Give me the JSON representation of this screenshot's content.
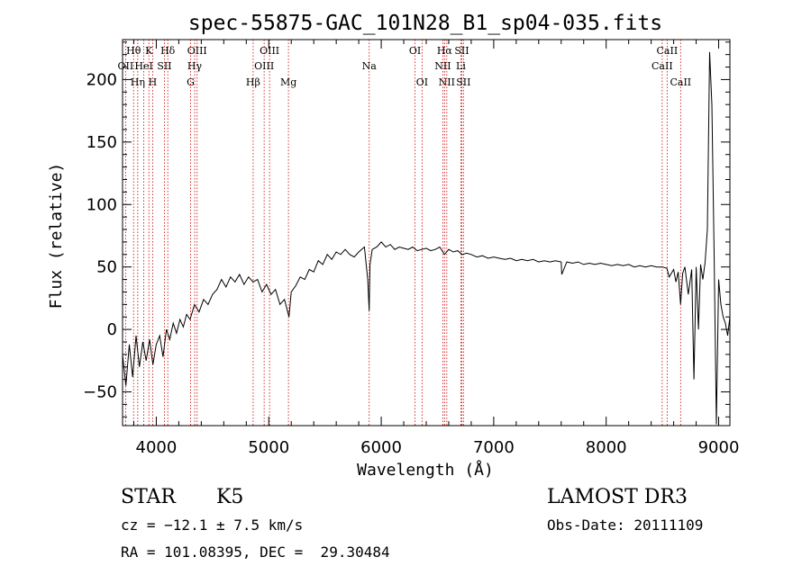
{
  "chart_data": {
    "type": "line",
    "title": "spec-55875-GAC_101N28_B1_sp04-035.fits",
    "xlabel": "Wavelength (Å)",
    "ylabel": "Flux (relative)",
    "xlim": [
      3700,
      9100
    ],
    "ylim": [
      -77,
      232
    ],
    "xticks": [
      4000,
      5000,
      6000,
      7000,
      8000,
      9000
    ],
    "yticks": [
      -50,
      0,
      50,
      100,
      150,
      200
    ],
    "line_color": "#000000",
    "marker_color": "#cc0000",
    "series": [
      {
        "name": "flux",
        "x": [
          3700,
          3730,
          3760,
          3790,
          3820,
          3850,
          3880,
          3910,
          3940,
          3970,
          4000,
          4030,
          4060,
          4090,
          4120,
          4150,
          4180,
          4210,
          4240,
          4270,
          4300,
          4340,
          4380,
          4420,
          4460,
          4500,
          4540,
          4580,
          4620,
          4660,
          4700,
          4740,
          4780,
          4820,
          4860,
          4900,
          4940,
          4980,
          5020,
          5060,
          5100,
          5140,
          5180,
          5200,
          5240,
          5280,
          5320,
          5360,
          5400,
          5440,
          5480,
          5520,
          5560,
          5600,
          5640,
          5680,
          5720,
          5760,
          5800,
          5850,
          5880,
          5893,
          5900,
          5920,
          5960,
          6000,
          6040,
          6080,
          6120,
          6160,
          6200,
          6240,
          6280,
          6320,
          6360,
          6400,
          6440,
          6480,
          6520,
          6563,
          6600,
          6640,
          6680,
          6720,
          6760,
          6800,
          6850,
          6900,
          6950,
          7000,
          7050,
          7100,
          7150,
          7200,
          7250,
          7300,
          7350,
          7400,
          7450,
          7500,
          7550,
          7600,
          7605,
          7650,
          7700,
          7750,
          7800,
          7850,
          7900,
          7950,
          8000,
          8050,
          8100,
          8150,
          8200,
          8250,
          8300,
          8350,
          8400,
          8450,
          8500,
          8540,
          8560,
          8600,
          8620,
          8640,
          8662,
          8680,
          8700,
          8730,
          8760,
          8780,
          8800,
          8820,
          8840,
          8860,
          8880,
          8900,
          8920,
          8940,
          8960,
          8980,
          9000,
          9020,
          9040,
          9060,
          9080,
          9100
        ],
        "y": [
          -20,
          -45,
          -12,
          -38,
          -5,
          -30,
          -10,
          -25,
          -8,
          -28,
          -12,
          -5,
          -22,
          0,
          -8,
          5,
          -3,
          8,
          2,
          12,
          8,
          20,
          14,
          24,
          20,
          28,
          32,
          40,
          34,
          42,
          38,
          44,
          36,
          42,
          38,
          40,
          30,
          36,
          28,
          32,
          20,
          24,
          10,
          30,
          35,
          42,
          40,
          48,
          46,
          55,
          52,
          60,
          56,
          62,
          60,
          64,
          60,
          58,
          62,
          66,
          40,
          15,
          52,
          64,
          66,
          70,
          66,
          68,
          64,
          66,
          65,
          64,
          66,
          63,
          64,
          65,
          63,
          64,
          66,
          60,
          64,
          62,
          63,
          60,
          61,
          60,
          58,
          59,
          57,
          58,
          57,
          56,
          57,
          55,
          56,
          55,
          56,
          54,
          55,
          54,
          55,
          54,
          44,
          54,
          53,
          54,
          52,
          53,
          52,
          53,
          52,
          51,
          52,
          51,
          52,
          50,
          51,
          50,
          51,
          50,
          50,
          49,
          42,
          48,
          38,
          46,
          20,
          45,
          50,
          28,
          48,
          -40,
          50,
          0,
          52,
          40,
          54,
          80,
          222,
          180,
          60,
          -76,
          40,
          20,
          10,
          5,
          -5,
          10
        ]
      }
    ],
    "line_markers": [
      {
        "name": "Hθ",
        "wavelength": 3798,
        "row": 0
      },
      {
        "name": "OII",
        "wavelength": 3727,
        "row": 1
      },
      {
        "name": "Hη",
        "wavelength": 3835,
        "row": 2
      },
      {
        "name": "K",
        "wavelength": 3934,
        "row": 0
      },
      {
        "name": "HeI",
        "wavelength": 3889,
        "row": 1
      },
      {
        "name": "H",
        "wavelength": 3968,
        "row": 2
      },
      {
        "name": "Hδ",
        "wavelength": 4102,
        "row": 0
      },
      {
        "name": "SII",
        "wavelength": 4072,
        "row": 1
      },
      {
        "name": "OIII",
        "wavelength": 4363,
        "row": 0
      },
      {
        "name": "Hγ",
        "wavelength": 4341,
        "row": 1
      },
      {
        "name": "G",
        "wavelength": 4305,
        "row": 2
      },
      {
        "name": "Hβ",
        "wavelength": 4861,
        "row": 2
      },
      {
        "name": "OIII",
        "wavelength": 5007,
        "row": 0
      },
      {
        "name": "OIII",
        "wavelength": 4959,
        "row": 1
      },
      {
        "name": "Mg",
        "wavelength": 5175,
        "row": 2
      },
      {
        "name": "Na",
        "wavelength": 5893,
        "row": 1
      },
      {
        "name": "OI",
        "wavelength": 6300,
        "row": 0
      },
      {
        "name": "OI",
        "wavelength": 6363,
        "row": 2
      },
      {
        "name": "Hα",
        "wavelength": 6563,
        "row": 0
      },
      {
        "name": "NII",
        "wavelength": 6548,
        "row": 1
      },
      {
        "name": "NII",
        "wavelength": 6583,
        "row": 2
      },
      {
        "name": "SII",
        "wavelength": 6716,
        "row": 0
      },
      {
        "name": "Li",
        "wavelength": 6708,
        "row": 1
      },
      {
        "name": "SII",
        "wavelength": 6731,
        "row": 2
      },
      {
        "name": "CaII",
        "wavelength": 8542,
        "row": 0
      },
      {
        "name": "CaII",
        "wavelength": 8498,
        "row": 1
      },
      {
        "name": "CaII",
        "wavelength": 8662,
        "row": 2
      }
    ]
  },
  "info": {
    "object_class": "STAR",
    "subclass": "K5",
    "redshift": "cz = −12.1 ± 7.5 km/s",
    "coords": "RA = 101.08395, DEC =  29.30484",
    "survey": "LAMOST DR3",
    "obs_date": "Obs-Date: 20111109"
  }
}
